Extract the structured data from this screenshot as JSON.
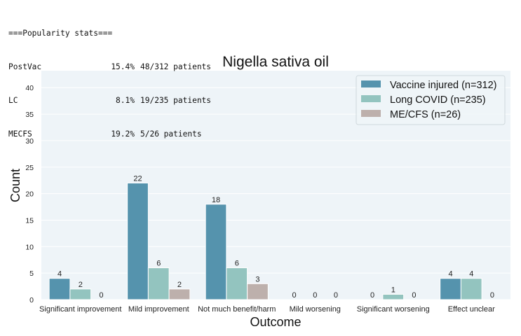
{
  "stats": {
    "header": "===Popularity stats===",
    "rows": [
      {
        "group": "PostVac",
        "pct": "15.4%",
        "count": "48/312 patients"
      },
      {
        "group": "LC",
        "pct": "8.1%",
        "count": "19/235 patients"
      },
      {
        "group": "MECFS",
        "pct": "19.2%",
        "count": "5/26 patients"
      }
    ]
  },
  "chart_data": {
    "type": "bar",
    "title": "Nigella sativa oil",
    "xlabel": "Outcome",
    "ylabel": "Count",
    "ylim": [
      0,
      43.2
    ],
    "yticks": [
      0,
      5,
      10,
      15,
      20,
      25,
      30,
      35,
      40
    ],
    "grid": true,
    "legend_position": "top-right",
    "categories": [
      "Significant improvement",
      "Mild improvement",
      "Not much benefit/harm",
      "Mild worsening",
      "Significant worsening",
      "Effect unclear"
    ],
    "series": [
      {
        "name": "Vaccine injured (n=312)",
        "color": "#5593ad",
        "values": [
          4,
          22,
          18,
          0,
          0,
          4
        ]
      },
      {
        "name": "Long COVID (n=235)",
        "color": "#93c4bf",
        "values": [
          2,
          6,
          6,
          0,
          1,
          4
        ]
      },
      {
        "name": "ME/CFS (n=26)",
        "color": "#bdb0ac",
        "values": [
          0,
          2,
          3,
          0,
          0,
          0
        ]
      }
    ],
    "background": "#eef4f8"
  }
}
